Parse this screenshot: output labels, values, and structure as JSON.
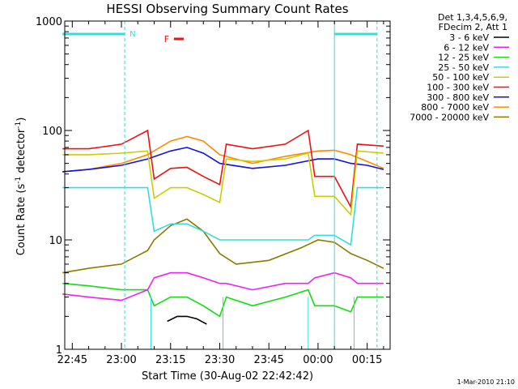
{
  "chart_data": {
    "type": "line",
    "title": "HESSI Observing Summary Count Rates",
    "xlabel": "Start Time (30-Aug-02 22:42:42)",
    "ylabel_main": "Count Rate (s",
    "ylabel_sup1": "-1",
    "ylabel_mid": " detector",
    "ylabel_sup2": "-1",
    "ylabel_end": ")",
    "ylim": [
      1,
      1000
    ],
    "yscale": "log",
    "xlim": [
      "22:42:42",
      "00:22:00"
    ],
    "grid": false,
    "legend_position": "top-right",
    "x_ticks": [
      "22:45",
      "23:00",
      "23:15",
      "23:30",
      "23:45",
      "00:00",
      "00:15"
    ],
    "y_ticks": [
      "1",
      "10",
      "100",
      "1000"
    ],
    "legend_header": [
      "Det 1,3,4,5,6,9,",
      "FDecim 2, Att 1"
    ],
    "annotations": {
      "night_flag": "N",
      "flare_flag": "F",
      "footer_date": "1-Mar-2010 21:10"
    },
    "flag_color_night": "#33dddd",
    "flag_color_flare": "#ee1111",
    "series": [
      {
        "name": "3 - 6 keV",
        "color": "#000000",
        "x": [
          "23:14",
          "23:17",
          "23:20",
          "23:23",
          "23:26"
        ],
        "y": [
          1.8,
          2.0,
          2.0,
          1.9,
          1.7
        ]
      },
      {
        "name": "6 - 12 keV",
        "color": "#ee22ee",
        "x": [
          "22:42",
          "22:50",
          "23:00",
          "23:08",
          "23:10",
          "23:15",
          "23:20",
          "23:25",
          "23:30",
          "23:32",
          "23:40",
          "23:50",
          "23:57",
          "23:59",
          "00:05",
          "00:10",
          "00:12",
          "00:20"
        ],
        "y": [
          3.2,
          3.0,
          2.8,
          3.5,
          4.5,
          5.0,
          5.0,
          4.5,
          4.0,
          4.0,
          3.5,
          4.0,
          4.0,
          4.5,
          5.0,
          4.5,
          4.0,
          4.0
        ]
      },
      {
        "name": "12 - 25 keV",
        "color": "#11dd11",
        "x": [
          "22:42",
          "22:50",
          "23:00",
          "23:08",
          "23:10",
          "23:15",
          "23:20",
          "23:25",
          "23:30",
          "23:32",
          "23:40",
          "23:50",
          "23:57",
          "23:59",
          "00:05",
          "00:10",
          "00:12",
          "00:20"
        ],
        "y": [
          4.0,
          3.8,
          3.5,
          3.5,
          2.5,
          3.0,
          3.0,
          2.5,
          2.0,
          3.0,
          2.5,
          3.0,
          3.5,
          2.5,
          2.5,
          2.2,
          3.0,
          3.0
        ]
      },
      {
        "name": "25 - 50 keV",
        "color": "#33dddd",
        "x": [
          "22:42",
          "22:50",
          "23:00",
          "23:08",
          "23:10",
          "23:15",
          "23:20",
          "23:25",
          "23:30",
          "23:32",
          "23:40",
          "23:50",
          "23:57",
          "23:59",
          "00:05",
          "00:10",
          "00:12",
          "00:20"
        ],
        "y": [
          30,
          30,
          30,
          30,
          12,
          14,
          14,
          12,
          10,
          10,
          10,
          10,
          10,
          11,
          11,
          9,
          30,
          30
        ]
      },
      {
        "name": "50 - 100 keV",
        "color": "#cccc00",
        "x": [
          "22:42",
          "22:50",
          "23:00",
          "23:08",
          "23:10",
          "23:15",
          "23:20",
          "23:25",
          "23:30",
          "23:32",
          "23:40",
          "23:50",
          "23:57",
          "23:59",
          "00:05",
          "00:10",
          "00:12",
          "00:20"
        ],
        "y": [
          60,
          60,
          62,
          65,
          24,
          30,
          30,
          26,
          22,
          55,
          52,
          55,
          62,
          25,
          25,
          17,
          65,
          62
        ]
      },
      {
        "name": "100 - 300 keV",
        "color": "#ee1111",
        "x": [
          "22:42",
          "22:50",
          "23:00",
          "23:08",
          "23:10",
          "23:15",
          "23:20",
          "23:25",
          "23:30",
          "23:32",
          "23:40",
          "23:50",
          "23:57",
          "23:59",
          "00:05",
          "00:10",
          "00:12",
          "00:20"
        ],
        "y": [
          68,
          68,
          75,
          100,
          36,
          45,
          46,
          38,
          32,
          75,
          68,
          75,
          100,
          38,
          38,
          20,
          75,
          72
        ]
      },
      {
        "name": "300 - 800 keV",
        "color": "#1111dd",
        "x": [
          "22:42",
          "22:50",
          "23:00",
          "23:08",
          "23:15",
          "23:20",
          "23:25",
          "23:30",
          "23:40",
          "23:50",
          "00:00",
          "00:05",
          "00:10",
          "00:15",
          "00:20"
        ],
        "y": [
          42,
          44,
          48,
          55,
          65,
          70,
          62,
          50,
          45,
          48,
          55,
          55,
          50,
          48,
          44
        ]
      },
      {
        "name": "800 - 7000 keV",
        "color": "#ff8800",
        "x": [
          "22:42",
          "22:50",
          "23:00",
          "23:08",
          "23:15",
          "23:20",
          "23:25",
          "23:30",
          "23:40",
          "23:50",
          "00:00",
          "00:05",
          "00:10",
          "00:15",
          "00:20"
        ],
        "y": [
          42,
          44,
          50,
          60,
          80,
          88,
          80,
          60,
          50,
          58,
          65,
          66,
          60,
          52,
          45
        ]
      },
      {
        "name": "7000 - 20000 keV",
        "color": "#8a7a00",
        "x": [
          "22:42",
          "22:50",
          "23:00",
          "23:08",
          "23:10",
          "23:15",
          "23:20",
          "23:25",
          "23:30",
          "23:35",
          "23:45",
          "23:55",
          "00:00",
          "00:05",
          "00:10",
          "00:15",
          "00:20"
        ],
        "y": [
          5.0,
          5.5,
          6.0,
          8.0,
          10.0,
          13.5,
          15.5,
          12.0,
          7.5,
          6.0,
          6.5,
          8.5,
          10.0,
          9.5,
          7.5,
          6.5,
          5.5
        ]
      }
    ]
  }
}
